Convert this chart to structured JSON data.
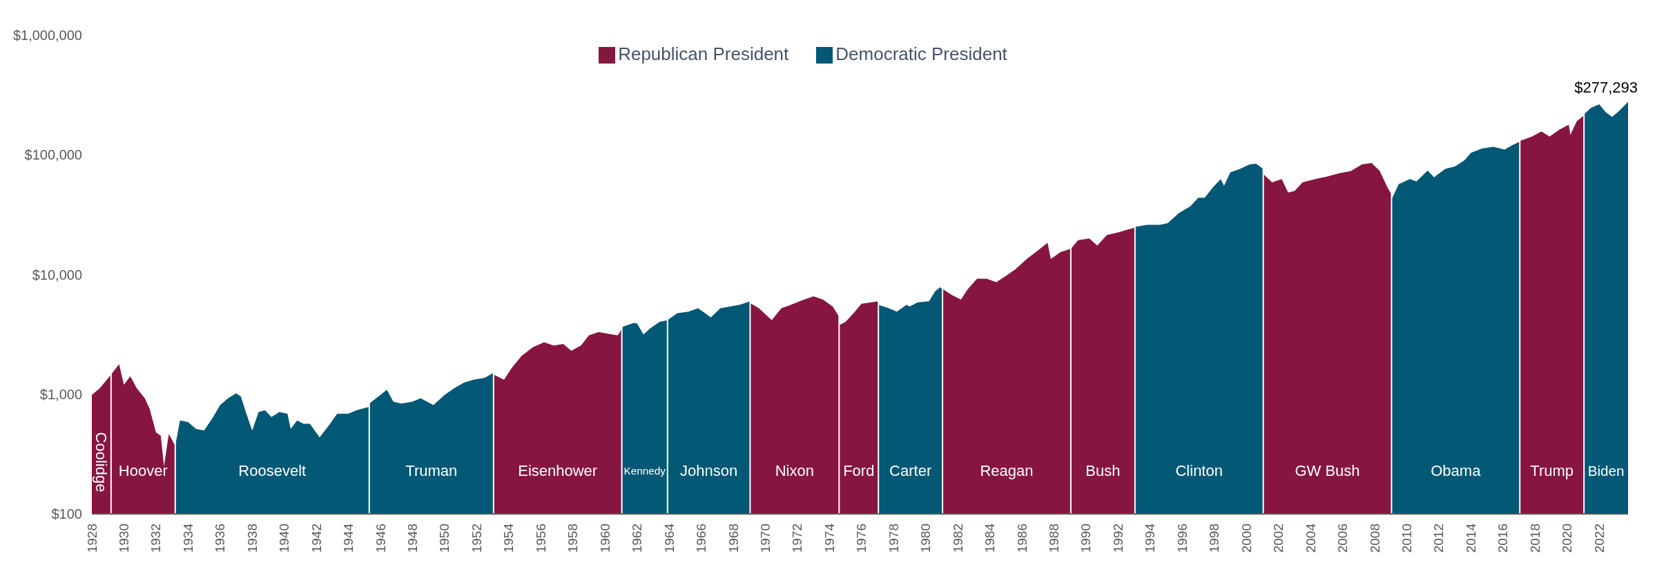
{
  "chart_data": {
    "type": "area",
    "log": true,
    "legend": "top",
    "xlim": [
      1928,
      2023.8
    ],
    "xticks": [
      1928,
      1930,
      1932,
      1934,
      1936,
      1938,
      1940,
      1942,
      1944,
      1946,
      1948,
      1950,
      1952,
      1954,
      1956,
      1958,
      1960,
      1962,
      1964,
      1966,
      1968,
      1970,
      1972,
      1974,
      1976,
      1978,
      1980,
      1982,
      1984,
      1986,
      1988,
      1990,
      1992,
      1994,
      1996,
      1998,
      2000,
      2002,
      2004,
      2006,
      2008,
      2010,
      2012,
      2014,
      2016,
      2018,
      2020,
      2022
    ],
    "ylim": [
      100,
      1000000
    ],
    "yticks": [
      {
        "value": 100,
        "label": "$100"
      },
      {
        "value": 1000,
        "label": "$1,000"
      },
      {
        "value": 10000,
        "label": "$10,000"
      },
      {
        "value": 100000,
        "label": "$100,000"
      },
      {
        "value": 1000000,
        "label": "$1,000,000"
      }
    ],
    "series": [
      {
        "name": "Republican President",
        "color": "#861640",
        "x": [
          1928.0,
          1928.5,
          1929.2,
          1929.7,
          1930.0,
          1930.4,
          1930.8,
          1931.3,
          1931.6,
          1932.0,
          1932.3,
          1932.5,
          1932.8,
          1933.2,
          1940,
          1953.05,
          1953.7,
          1954.2,
          1954.8,
          1955.5,
          1956.2,
          1956.8,
          1957.4,
          1957.9,
          1958.5,
          1959.0,
          1959.6,
          1960.2,
          1960.8,
          1961.05,
          1965,
          1969.05,
          1969.6,
          1970.4,
          1971.0,
          1971.6,
          1972.3,
          1973.0,
          1973.6,
          1974.2,
          1974.6,
          1974.6,
          1975.0,
          1975.5,
          1976.0,
          1976.6,
          1977.05,
          1979,
          1981.05,
          1981.6,
          1982.2,
          1982.6,
          1983.2,
          1983.8,
          1984.4,
          1985.0,
          1985.6,
          1986.3,
          1987.0,
          1987.6,
          1987.8,
          1988.4,
          1989.05,
          1989.5,
          1990.2,
          1990.7,
          1991.3,
          1992.0,
          1992.5,
          1993.05,
          1997,
          2001.05,
          2001.6,
          2002.2,
          2002.6,
          2003.0,
          2003.5,
          2004.3,
          2005.0,
          2005.8,
          2006.5,
          2007.2,
          2007.8,
          2008.3,
          2008.8,
          2009.05,
          2013,
          2017.05,
          2017.8,
          2018.4,
          2018.9,
          2019.5,
          2020.1,
          2020.2,
          2020.6,
          2021.05
        ],
        "values": [
          986,
          1125,
          1460,
          1780,
          1200,
          1415,
          1125,
          925,
          760,
          480,
          450,
          250,
          466,
          370,
          null,
          1460,
          1320,
          1670,
          2090,
          2470,
          2720,
          2550,
          2630,
          2310,
          2550,
          3100,
          3310,
          3200,
          3100,
          3530,
          null,
          5780,
          5240,
          4160,
          5240,
          5590,
          6090,
          6580,
          6170,
          5410,
          4450,
          3780,
          4030,
          4750,
          5700,
          5860,
          5970,
          null,
          7600,
          6790,
          6170,
          7480,
          9240,
          9240,
          8650,
          9750,
          11100,
          13500,
          15900,
          18400,
          13500,
          15400,
          16400,
          19400,
          20000,
          17500,
          21400,
          22500,
          23600,
          24700,
          null,
          69300,
          58900,
          62800,
          48400,
          50000,
          58900,
          62800,
          65800,
          70300,
          73100,
          83300,
          85500,
          74000,
          53300,
          46800,
          null,
          131000,
          142000,
          157000,
          142000,
          162000,
          179000,
          147000,
          191000,
          214000
        ]
      },
      {
        "name": "Democratic President",
        "color": "#035875",
        "x": [
          1933.2,
          1933.5,
          1934.0,
          1934.5,
          1935.0,
          1935.5,
          1936.0,
          1936.5,
          1937.0,
          1937.3,
          1937.6,
          1938.0,
          1938.4,
          1938.8,
          1939.2,
          1939.7,
          1940.2,
          1940.4,
          1940.8,
          1941.2,
          1941.6,
          1942.2,
          1942.7,
          1943.3,
          1944.0,
          1944.5,
          1945.3,
          1945.3,
          1946.0,
          1946.4,
          1946.8,
          1947.3,
          1948.0,
          1948.5,
          1949.3,
          1950.0,
          1950.6,
          1951.2,
          1951.8,
          1952.5,
          1953.05,
          1957,
          1961.05,
          1961.8,
          1962.0,
          1962.4,
          1962.8,
          1963.4,
          1963.9,
          1964.5,
          1965.2,
          1965.8,
          1966.6,
          1967.2,
          1967.8,
          1968.4,
          1969.05,
          1973,
          1977.05,
          1977.7,
          1978.2,
          1978.8,
          1979.0,
          1979.5,
          1980.2,
          1980.6,
          1980.9,
          1981.05,
          1985,
          1993.05,
          1993.8,
          1994.6,
          1995.1,
          1995.8,
          1996.5,
          1997.0,
          1997.4,
          1997.9,
          1998.4,
          1998.6,
          1999.0,
          1999.6,
          2000.2,
          2000.6,
          2001.05,
          2005,
          2009.05,
          2009.5,
          2010.2,
          2010.6,
          2011.3,
          2011.7,
          2012.4,
          2013.0,
          2013.6,
          2014.0,
          2014.7,
          2015.4,
          2016.1,
          2016.6,
          2017.05,
          2019,
          2021.05,
          2021.5,
          2022.0,
          2022.4,
          2022.8,
          2023.2,
          2023.5,
          2023.8
        ],
        "values": [
          370,
          604,
          585,
          513,
          497,
          624,
          811,
          925,
          1020,
          954,
          711,
          497,
          711,
          735,
          645,
          711,
          688,
          513,
          604,
          567,
          567,
          436,
          531,
          688,
          688,
          735,
          785,
          837,
          986,
          1090,
          866,
          837,
          866,
          925,
          811,
          986,
          1125,
          1250,
          1320,
          1370,
          1510,
          null,
          3640,
          3950,
          3900,
          3160,
          3530,
          4030,
          4160,
          4750,
          4900,
          5240,
          4390,
          5240,
          5410,
          5590,
          5970,
          null,
          5590,
          5240,
          4900,
          5590,
          5410,
          5860,
          5970,
          7260,
          7850,
          7480,
          null,
          25000,
          26000,
          26000,
          26900,
          32700,
          37200,
          43900,
          43900,
          53300,
          62800,
          55100,
          71600,
          76500,
          83300,
          84300,
          76500,
          null,
          42500,
          57000,
          62800,
          60000,
          74000,
          65000,
          76500,
          80000,
          90200,
          104000,
          113000,
          117000,
          111000,
          121000,
          129000,
          null,
          218000,
          248000,
          265000,
          228000,
          208000,
          230000,
          253000,
          277293
        ]
      }
    ],
    "ref_lines": [
      {
        "axis": "x",
        "value": 1929.2,
        "color": "#ffffff"
      },
      {
        "axis": "x",
        "value": 1933.2,
        "color": "#ffffff"
      },
      {
        "axis": "x",
        "value": 1945.3,
        "color": "#ffffff"
      },
      {
        "axis": "x",
        "value": 1953.05,
        "color": "#ffffff"
      },
      {
        "axis": "x",
        "value": 1961.05,
        "color": "#ffffff"
      },
      {
        "axis": "x",
        "value": 1963.9,
        "color": "#ffffff"
      },
      {
        "axis": "x",
        "value": 1969.05,
        "color": "#ffffff"
      },
      {
        "axis": "x",
        "value": 1974.6,
        "color": "#ffffff"
      },
      {
        "axis": "x",
        "value": 1977.05,
        "color": "#ffffff"
      },
      {
        "axis": "x",
        "value": 1981.05,
        "color": "#ffffff"
      },
      {
        "axis": "x",
        "value": 1989.05,
        "color": "#ffffff"
      },
      {
        "axis": "x",
        "value": 1993.05,
        "color": "#ffffff"
      },
      {
        "axis": "x",
        "value": 2001.05,
        "color": "#ffffff"
      },
      {
        "axis": "x",
        "value": 2009.05,
        "color": "#ffffff"
      },
      {
        "axis": "x",
        "value": 2017.05,
        "color": "#ffffff"
      },
      {
        "axis": "x",
        "value": 2021.05,
        "color": "#ffffff"
      }
    ],
    "annotations": [
      "Coolidge",
      "Hoover",
      "Roosevelt",
      "Truman",
      "Eisenhower",
      "Kennedy",
      "Johnson",
      "Nixon",
      "Ford",
      "Carter",
      "Reagan",
      "Bush",
      "Clinton",
      "GW Bush",
      "Obama",
      "Trump",
      "Biden",
      {
        "text": "$277,293",
        "x": 2023.8,
        "y": 277293
      }
    ]
  }
}
